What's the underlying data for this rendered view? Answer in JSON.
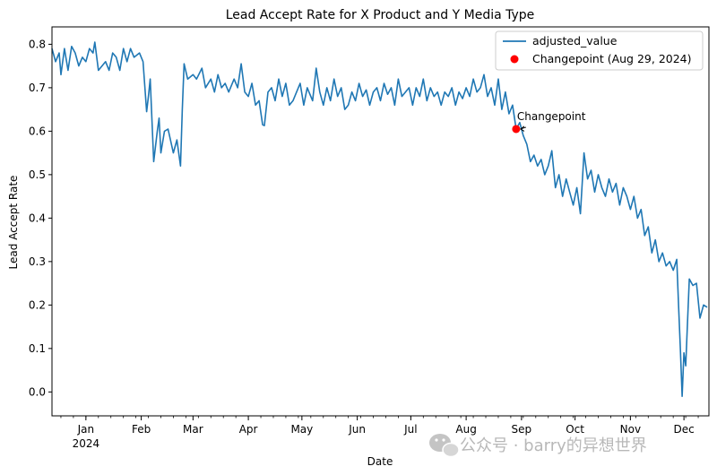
{
  "watermark": {
    "text": "公众号 · barry的异想世界"
  },
  "chart_data": {
    "type": "line",
    "title": "Lead Accept Rate for X Product and Y Media Type",
    "xlabel": "Date",
    "ylabel": "Lead Accept Rate",
    "xlim": [
      "2023-12-13",
      "2024-12-15"
    ],
    "ylim": [
      -0.055,
      0.84
    ],
    "yticks": [
      0.0,
      0.1,
      0.2,
      0.3,
      0.4,
      0.5,
      0.6,
      0.7,
      0.8
    ],
    "ytick_labels": [
      "0.0",
      "0.1",
      "0.2",
      "0.3",
      "0.4",
      "0.5",
      "0.6",
      "0.7",
      "0.8"
    ],
    "xticks": [
      {
        "date": "2024-01-01",
        "label": "Jan",
        "sublabel": "2024"
      },
      {
        "date": "2024-02-01",
        "label": "Feb",
        "sublabel": ""
      },
      {
        "date": "2024-03-01",
        "label": "Mar",
        "sublabel": ""
      },
      {
        "date": "2024-04-01",
        "label": "Apr",
        "sublabel": ""
      },
      {
        "date": "2024-05-01",
        "label": "May",
        "sublabel": ""
      },
      {
        "date": "2024-06-01",
        "label": "Jun",
        "sublabel": ""
      },
      {
        "date": "2024-07-01",
        "label": "Jul",
        "sublabel": ""
      },
      {
        "date": "2024-08-01",
        "label": "Aug",
        "sublabel": ""
      },
      {
        "date": "2024-09-01",
        "label": "Sep",
        "sublabel": ""
      },
      {
        "date": "2024-10-01",
        "label": "Oct",
        "sublabel": ""
      },
      {
        "date": "2024-11-01",
        "label": "Nov",
        "sublabel": ""
      },
      {
        "date": "2024-12-01",
        "label": "Dec",
        "sublabel": ""
      }
    ],
    "grid": false,
    "legend_placement": "top-right",
    "series": [
      {
        "name": "adjusted_value",
        "color": "#1f77b4",
        "points": [
          [
            "2023-12-13",
            0.79
          ],
          [
            "2023-12-15",
            0.76
          ],
          [
            "2023-12-17",
            0.78
          ],
          [
            "2023-12-18",
            0.73
          ],
          [
            "2023-12-20",
            0.79
          ],
          [
            "2023-12-22",
            0.74
          ],
          [
            "2023-12-24",
            0.795
          ],
          [
            "2023-12-26",
            0.78
          ],
          [
            "2023-12-28",
            0.75
          ],
          [
            "2023-12-30",
            0.77
          ],
          [
            "2024-01-01",
            0.76
          ],
          [
            "2024-01-03",
            0.79
          ],
          [
            "2024-01-05",
            0.78
          ],
          [
            "2024-01-06",
            0.805
          ],
          [
            "2024-01-08",
            0.74
          ],
          [
            "2024-01-10",
            0.75
          ],
          [
            "2024-01-12",
            0.76
          ],
          [
            "2024-01-14",
            0.74
          ],
          [
            "2024-01-16",
            0.78
          ],
          [
            "2024-01-18",
            0.77
          ],
          [
            "2024-01-20",
            0.74
          ],
          [
            "2024-01-22",
            0.79
          ],
          [
            "2024-01-24",
            0.76
          ],
          [
            "2024-01-26",
            0.79
          ],
          [
            "2024-01-28",
            0.77
          ],
          [
            "2024-01-31",
            0.78
          ],
          [
            "2024-02-02",
            0.76
          ],
          [
            "2024-02-04",
            0.645
          ],
          [
            "2024-02-05",
            0.68
          ],
          [
            "2024-02-06",
            0.72
          ],
          [
            "2024-02-08",
            0.53
          ],
          [
            "2024-02-10",
            0.6
          ],
          [
            "2024-02-11",
            0.63
          ],
          [
            "2024-02-12",
            0.55
          ],
          [
            "2024-02-14",
            0.6
          ],
          [
            "2024-02-16",
            0.605
          ],
          [
            "2024-02-19",
            0.55
          ],
          [
            "2024-02-21",
            0.58
          ],
          [
            "2024-02-23",
            0.52
          ],
          [
            "2024-02-24",
            0.65
          ],
          [
            "2024-02-25",
            0.755
          ],
          [
            "2024-02-27",
            0.72
          ],
          [
            "2024-03-01",
            0.73
          ],
          [
            "2024-03-03",
            0.72
          ],
          [
            "2024-03-06",
            0.745
          ],
          [
            "2024-03-08",
            0.7
          ],
          [
            "2024-03-11",
            0.72
          ],
          [
            "2024-03-13",
            0.69
          ],
          [
            "2024-03-15",
            0.73
          ],
          [
            "2024-03-17",
            0.7
          ],
          [
            "2024-03-19",
            0.71
          ],
          [
            "2024-03-21",
            0.69
          ],
          [
            "2024-03-24",
            0.72
          ],
          [
            "2024-03-26",
            0.7
          ],
          [
            "2024-03-28",
            0.755
          ],
          [
            "2024-03-30",
            0.69
          ],
          [
            "2024-04-01",
            0.68
          ],
          [
            "2024-04-03",
            0.71
          ],
          [
            "2024-04-05",
            0.66
          ],
          [
            "2024-04-07",
            0.67
          ],
          [
            "2024-04-09",
            0.615
          ],
          [
            "2024-04-10",
            0.613
          ],
          [
            "2024-04-12",
            0.69
          ],
          [
            "2024-04-14",
            0.7
          ],
          [
            "2024-04-16",
            0.67
          ],
          [
            "2024-04-18",
            0.72
          ],
          [
            "2024-04-20",
            0.68
          ],
          [
            "2024-04-22",
            0.71
          ],
          [
            "2024-04-24",
            0.66
          ],
          [
            "2024-04-26",
            0.67
          ],
          [
            "2024-04-28",
            0.69
          ],
          [
            "2024-04-30",
            0.71
          ],
          [
            "2024-05-02",
            0.66
          ],
          [
            "2024-05-04",
            0.7
          ],
          [
            "2024-05-07",
            0.67
          ],
          [
            "2024-05-09",
            0.745
          ],
          [
            "2024-05-11",
            0.69
          ],
          [
            "2024-05-13",
            0.66
          ],
          [
            "2024-05-15",
            0.7
          ],
          [
            "2024-05-17",
            0.67
          ],
          [
            "2024-05-19",
            0.72
          ],
          [
            "2024-05-21",
            0.68
          ],
          [
            "2024-05-23",
            0.7
          ],
          [
            "2024-05-25",
            0.65
          ],
          [
            "2024-05-27",
            0.66
          ],
          [
            "2024-05-29",
            0.69
          ],
          [
            "2024-05-31",
            0.67
          ],
          [
            "2024-06-02",
            0.71
          ],
          [
            "2024-06-04",
            0.68
          ],
          [
            "2024-06-06",
            0.695
          ],
          [
            "2024-06-08",
            0.66
          ],
          [
            "2024-06-10",
            0.69
          ],
          [
            "2024-06-12",
            0.7
          ],
          [
            "2024-06-14",
            0.67
          ],
          [
            "2024-06-16",
            0.71
          ],
          [
            "2024-06-18",
            0.685
          ],
          [
            "2024-06-20",
            0.7
          ],
          [
            "2024-06-22",
            0.66
          ],
          [
            "2024-06-24",
            0.72
          ],
          [
            "2024-06-26",
            0.68
          ],
          [
            "2024-06-28",
            0.69
          ],
          [
            "2024-06-30",
            0.7
          ],
          [
            "2024-07-02",
            0.66
          ],
          [
            "2024-07-04",
            0.7
          ],
          [
            "2024-07-06",
            0.68
          ],
          [
            "2024-07-08",
            0.72
          ],
          [
            "2024-07-10",
            0.67
          ],
          [
            "2024-07-12",
            0.7
          ],
          [
            "2024-07-14",
            0.68
          ],
          [
            "2024-07-16",
            0.69
          ],
          [
            "2024-07-18",
            0.66
          ],
          [
            "2024-07-20",
            0.69
          ],
          [
            "2024-07-22",
            0.68
          ],
          [
            "2024-07-24",
            0.7
          ],
          [
            "2024-07-26",
            0.66
          ],
          [
            "2024-07-28",
            0.69
          ],
          [
            "2024-07-30",
            0.675
          ],
          [
            "2024-08-01",
            0.7
          ],
          [
            "2024-08-03",
            0.68
          ],
          [
            "2024-08-05",
            0.72
          ],
          [
            "2024-08-07",
            0.69
          ],
          [
            "2024-08-09",
            0.7
          ],
          [
            "2024-08-11",
            0.73
          ],
          [
            "2024-08-13",
            0.68
          ],
          [
            "2024-08-15",
            0.7
          ],
          [
            "2024-08-17",
            0.66
          ],
          [
            "2024-08-19",
            0.72
          ],
          [
            "2024-08-21",
            0.65
          ],
          [
            "2024-08-23",
            0.69
          ],
          [
            "2024-08-25",
            0.64
          ],
          [
            "2024-08-27",
            0.66
          ],
          [
            "2024-08-29",
            0.605
          ],
          [
            "2024-08-31",
            0.62
          ],
          [
            "2024-09-02",
            0.59
          ],
          [
            "2024-09-04",
            0.57
          ],
          [
            "2024-09-06",
            0.53
          ],
          [
            "2024-09-08",
            0.545
          ],
          [
            "2024-09-10",
            0.52
          ],
          [
            "2024-09-12",
            0.535
          ],
          [
            "2024-09-14",
            0.5
          ],
          [
            "2024-09-16",
            0.52
          ],
          [
            "2024-09-18",
            0.555
          ],
          [
            "2024-09-20",
            0.47
          ],
          [
            "2024-09-22",
            0.5
          ],
          [
            "2024-09-24",
            0.45
          ],
          [
            "2024-09-26",
            0.49
          ],
          [
            "2024-09-28",
            0.46
          ],
          [
            "2024-09-30",
            0.43
          ],
          [
            "2024-10-02",
            0.47
          ],
          [
            "2024-10-04",
            0.41
          ],
          [
            "2024-10-06",
            0.55
          ],
          [
            "2024-10-08",
            0.49
          ],
          [
            "2024-10-10",
            0.51
          ],
          [
            "2024-10-12",
            0.46
          ],
          [
            "2024-10-14",
            0.5
          ],
          [
            "2024-10-16",
            0.47
          ],
          [
            "2024-10-18",
            0.45
          ],
          [
            "2024-10-20",
            0.49
          ],
          [
            "2024-10-22",
            0.46
          ],
          [
            "2024-10-24",
            0.48
          ],
          [
            "2024-10-26",
            0.43
          ],
          [
            "2024-10-28",
            0.47
          ],
          [
            "2024-10-30",
            0.45
          ],
          [
            "2024-11-01",
            0.42
          ],
          [
            "2024-11-03",
            0.45
          ],
          [
            "2024-11-05",
            0.4
          ],
          [
            "2024-11-07",
            0.42
          ],
          [
            "2024-11-09",
            0.36
          ],
          [
            "2024-11-11",
            0.38
          ],
          [
            "2024-11-13",
            0.32
          ],
          [
            "2024-11-15",
            0.35
          ],
          [
            "2024-11-17",
            0.3
          ],
          [
            "2024-11-19",
            0.32
          ],
          [
            "2024-11-21",
            0.29
          ],
          [
            "2024-11-23",
            0.3
          ],
          [
            "2024-11-25",
            0.28
          ],
          [
            "2024-11-27",
            0.305
          ],
          [
            "2024-11-28",
            0.2
          ],
          [
            "2024-11-29",
            0.1
          ],
          [
            "2024-11-30",
            -0.01
          ],
          [
            "2024-12-01",
            0.09
          ],
          [
            "2024-12-02",
            0.06
          ],
          [
            "2024-12-04",
            0.26
          ],
          [
            "2024-12-06",
            0.245
          ],
          [
            "2024-12-08",
            0.25
          ],
          [
            "2024-12-10",
            0.17
          ],
          [
            "2024-12-12",
            0.2
          ],
          [
            "2024-12-14",
            0.195
          ]
        ]
      }
    ],
    "changepoint": {
      "legend_label": "Changepoint (Aug 29, 2024)",
      "annotation": "Changepoint",
      "date": "2024-08-29",
      "value": 0.605,
      "color": "#ff0000"
    }
  }
}
